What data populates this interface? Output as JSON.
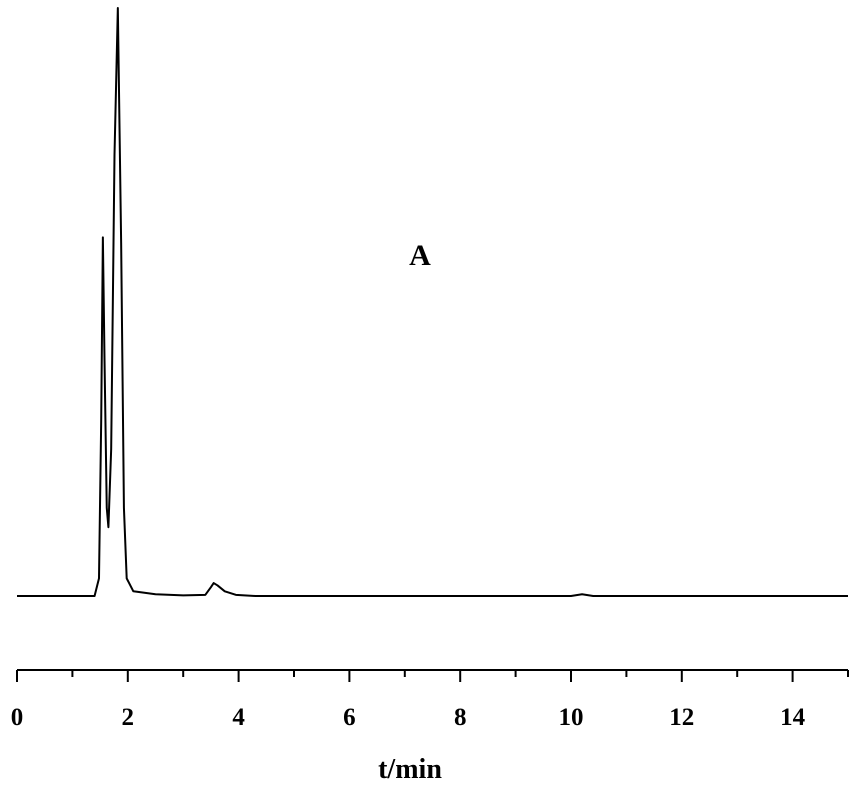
{
  "chart_data": {
    "type": "line",
    "annotation": "A",
    "xlabel": "t/min",
    "xlim": [
      0,
      15
    ],
    "xticks": [
      0,
      2,
      4,
      6,
      8,
      10,
      12,
      14
    ],
    "xminorticks": [
      1,
      3,
      5,
      7,
      9,
      11,
      13,
      15
    ],
    "ylim": [
      0,
      100
    ],
    "series": [
      {
        "color": "#000000",
        "x": [
          0,
          1.4,
          1.48,
          1.52,
          1.55,
          1.58,
          1.62,
          1.65,
          1.7,
          1.76,
          1.82,
          1.88,
          1.93,
          1.98,
          2.1,
          2.5,
          3.0,
          3.4,
          3.5,
          3.55,
          3.62,
          3.75,
          3.95,
          4.3,
          10.0,
          10.2,
          10.4,
          15
        ],
        "values": [
          0,
          0,
          3,
          30,
          61,
          40,
          15,
          11.7,
          25,
          75,
          100,
          60,
          15,
          3,
          0.8,
          0.3,
          0.1,
          0.2,
          1.5,
          2.2,
          1.8,
          0.8,
          0.2,
          0,
          0,
          0.3,
          0,
          0
        ]
      }
    ]
  }
}
